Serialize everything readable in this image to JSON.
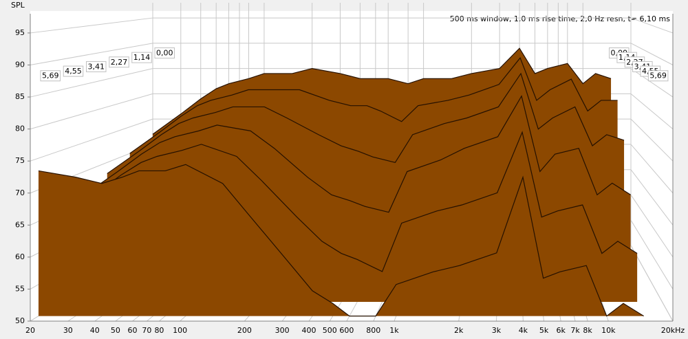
{
  "chart_data": {
    "type": "waterfall",
    "y_label": "SPL",
    "info": "500 ms window, 1,0 ms rise time,  2,0 Hz resn, t= 6,10 ms",
    "xscale": "log",
    "fill_color": "#8c4800",
    "line_color": "#241000",
    "xlim": [
      20,
      20000
    ],
    "ylim": [
      50,
      98
    ],
    "zlim": [
      0,
      6.1
    ],
    "yticks": [
      50,
      55,
      60,
      65,
      70,
      75,
      80,
      85,
      90,
      95
    ],
    "xticks": [
      20,
      30,
      40,
      50,
      60,
      70,
      80,
      100,
      200,
      300,
      400,
      500,
      600,
      800,
      {
        "value": 1000,
        "label": "1k"
      },
      {
        "value": 2000,
        "label": "2k"
      },
      {
        "value": 3000,
        "label": "3k"
      },
      {
        "value": 4000,
        "label": "4k"
      },
      {
        "value": 5000,
        "label": "5k"
      },
      {
        "value": 6000,
        "label": "6k"
      },
      {
        "value": 7000,
        "label": "7k"
      },
      {
        "value": 8000,
        "label": "8k"
      },
      {
        "value": 10000,
        "label": "10k"
      },
      {
        "value": 20000,
        "label": "20kHz"
      }
    ],
    "zticks": [
      {
        "value": 0,
        "label": "0,00"
      },
      {
        "value": 1.14,
        "label": "1,14"
      },
      {
        "value": 2.27,
        "label": "2,27"
      },
      {
        "value": 3.41,
        "label": "3,41"
      },
      {
        "value": 4.55,
        "label": "4,55"
      },
      {
        "value": 5.69,
        "label": "5,69"
      }
    ],
    "x": [
      20,
      30,
      40,
      50,
      60,
      80,
      100,
      150,
      200,
      300,
      400,
      500,
      600,
      800,
      1000,
      1500,
      2000,
      3000,
      4000,
      5000,
      6000,
      8000,
      10000,
      12000,
      15000
    ],
    "series": [
      {
        "t": 0,
        "values": [
          72,
          76,
          79,
          81,
          82,
          83,
          84,
          84,
          85,
          84,
          83,
          83,
          83,
          82,
          83,
          83,
          84,
          85,
          89,
          84,
          85,
          86,
          82,
          84,
          83
        ]
      },
      {
        "t": 1.14,
        "values": [
          70,
          74,
          77,
          79,
          80,
          81,
          82,
          82,
          82,
          80,
          79,
          79,
          78,
          76,
          79,
          80,
          81,
          83,
          88,
          80,
          82,
          84,
          78,
          80,
          80
        ]
      },
      {
        "t": 2.27,
        "values": [
          68,
          72,
          75,
          77,
          78,
          79,
          80,
          80,
          78,
          75,
          73,
          72,
          71,
          70,
          75,
          77,
          78,
          80,
          86,
          76,
          78,
          80,
          73,
          75,
          74
        ]
      },
      {
        "t": 3.41,
        "values": [
          66,
          70,
          73,
          75,
          76,
          77,
          78,
          77,
          74,
          69,
          66,
          65,
          64,
          63,
          70,
          72,
          74,
          76,
          83,
          70,
          73,
          74,
          66,
          68,
          66
        ]
      },
      {
        "t": 4.55,
        "values": [
          64,
          68,
          71,
          73,
          74,
          75,
          76,
          74,
          70,
          64,
          60,
          58,
          57,
          55,
          63,
          65,
          66,
          68,
          78,
          64,
          65,
          66,
          58,
          60,
          58
        ]
      },
      {
        "t": 5.69,
        "values": [
          73,
          72,
          71,
          72,
          73,
          73,
          74,
          71,
          66,
          59,
          54,
          52,
          50,
          50,
          55,
          57,
          58,
          60,
          72,
          56,
          57,
          58,
          50,
          52,
          50
        ]
      }
    ]
  }
}
